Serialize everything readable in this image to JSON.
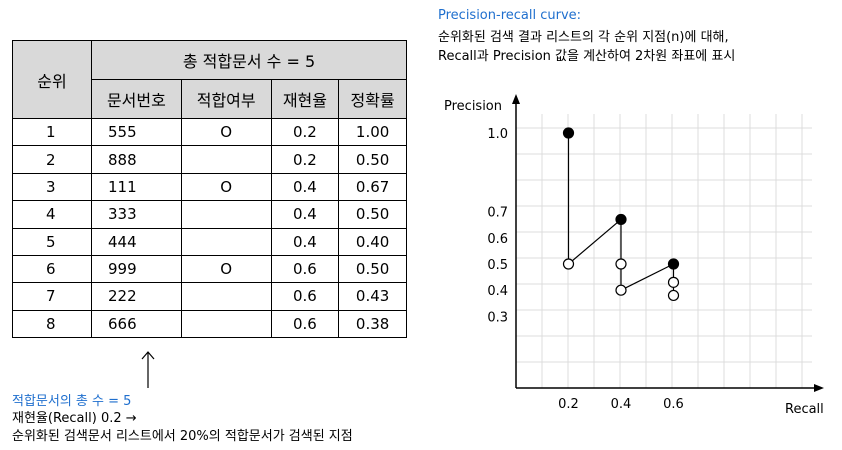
{
  "table": {
    "rank_header": "순위",
    "group_header": "총 적합문서 수 = 5",
    "columns": [
      "문서번호",
      "적합여부",
      "재현율",
      "정확률"
    ],
    "rows": [
      {
        "rank": "1",
        "doc": "555",
        "relevant": "O",
        "recall": "0.2",
        "precision": "1.00"
      },
      {
        "rank": "2",
        "doc": "888",
        "relevant": "",
        "recall": "0.2",
        "precision": "0.50"
      },
      {
        "rank": "3",
        "doc": "111",
        "relevant": "O",
        "recall": "0.4",
        "precision": "0.67"
      },
      {
        "rank": "4",
        "doc": "333",
        "relevant": "",
        "recall": "0.4",
        "precision": "0.50"
      },
      {
        "rank": "5",
        "doc": "444",
        "relevant": "",
        "recall": "0.4",
        "precision": "0.40"
      },
      {
        "rank": "6",
        "doc": "999",
        "relevant": "O",
        "recall": "0.6",
        "precision": "0.50"
      },
      {
        "rank": "7",
        "doc": "222",
        "relevant": "",
        "recall": "0.6",
        "precision": "0.43"
      },
      {
        "rank": "8",
        "doc": "666",
        "relevant": "",
        "recall": "0.6",
        "precision": "0.38"
      }
    ]
  },
  "annotation": {
    "line1": "적합문서의 총 수 = 5",
    "line2": "재현율(Recall) 0.2 →",
    "line3": "순위화된 검색문서 리스트에서 20%의 적합문서가 검색된 지점"
  },
  "chart_header": {
    "title": "Precision-recall curve:",
    "desc1": "순위화된 검색 결과 리스트의 각 순위 지점(n)에 대해,",
    "desc2": "Recall과 Precision 값을 계산하여 2차원 좌표에 표시"
  },
  "chart_data": {
    "type": "scatter",
    "xlabel": "Recall",
    "ylabel": "Precision",
    "x_ticks": [
      "0.2",
      "0.4",
      "0.6"
    ],
    "y_ticks": [
      "1.0",
      "0.7",
      "0.6",
      "0.5",
      "0.4",
      "0.3"
    ],
    "points": [
      {
        "rank": 1,
        "x": 0.2,
        "y": 1.0,
        "relevant": true
      },
      {
        "rank": 2,
        "x": 0.2,
        "y": 0.5,
        "relevant": false
      },
      {
        "rank": 3,
        "x": 0.4,
        "y": 0.67,
        "relevant": true
      },
      {
        "rank": 4,
        "x": 0.4,
        "y": 0.5,
        "relevant": false
      },
      {
        "rank": 5,
        "x": 0.4,
        "y": 0.4,
        "relevant": false
      },
      {
        "rank": 6,
        "x": 0.6,
        "y": 0.5,
        "relevant": true
      },
      {
        "rank": 7,
        "x": 0.6,
        "y": 0.43,
        "relevant": false
      },
      {
        "rank": 8,
        "x": 0.6,
        "y": 0.38,
        "relevant": false
      }
    ],
    "grid": true,
    "colors": {
      "grid": "#dcdcdc",
      "axis": "#000000",
      "relevant_fill": "#000000",
      "nonrelevant_fill": "#ffffff"
    }
  }
}
